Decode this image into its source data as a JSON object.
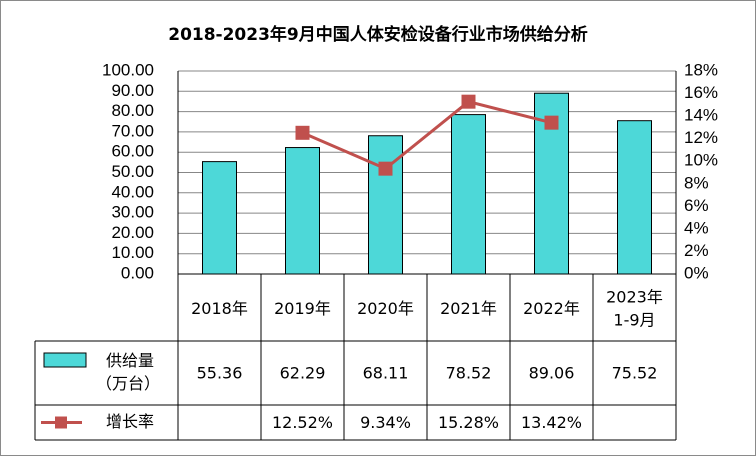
{
  "chart_data": {
    "type": "bar",
    "title": "2018-2023年9月中国人体安检设备行业市场供给分析",
    "categories": [
      [
        "2018年"
      ],
      [
        "2019年"
      ],
      [
        "2020年"
      ],
      [
        "2021年"
      ],
      [
        "2022年"
      ],
      [
        "2023年",
        "1-9月"
      ]
    ],
    "series": [
      {
        "name": "供给量（万台）",
        "name_lines": [
          "供给量",
          "（万台）"
        ],
        "type": "bar",
        "axis": "left",
        "values": [
          55.36,
          62.29,
          68.11,
          78.52,
          89.06,
          75.52
        ],
        "labels": [
          "55.36",
          "62.29",
          "68.11",
          "78.52",
          "89.06",
          "75.52"
        ],
        "color": "#4DD8D8"
      },
      {
        "name": "增长率",
        "name_lines": [
          "增长率"
        ],
        "type": "line",
        "axis": "right",
        "values": [
          null,
          12.52,
          9.34,
          15.28,
          13.42,
          null
        ],
        "labels": [
          "",
          "12.52%",
          "9.34%",
          "15.28%",
          "13.42%",
          ""
        ],
        "color": "#C0504D"
      }
    ],
    "y_left": {
      "lim": [
        0,
        100
      ],
      "ticks": [
        "0.00",
        "10.00",
        "20.00",
        "30.00",
        "40.00",
        "50.00",
        "60.00",
        "70.00",
        "80.00",
        "90.00",
        "100.00"
      ]
    },
    "y_right": {
      "lim": [
        0,
        18
      ],
      "ticks": [
        "0%",
        "2%",
        "4%",
        "6%",
        "8%",
        "10%",
        "12%",
        "14%",
        "16%",
        "18%"
      ]
    },
    "grid": true,
    "legend": "data-table"
  }
}
